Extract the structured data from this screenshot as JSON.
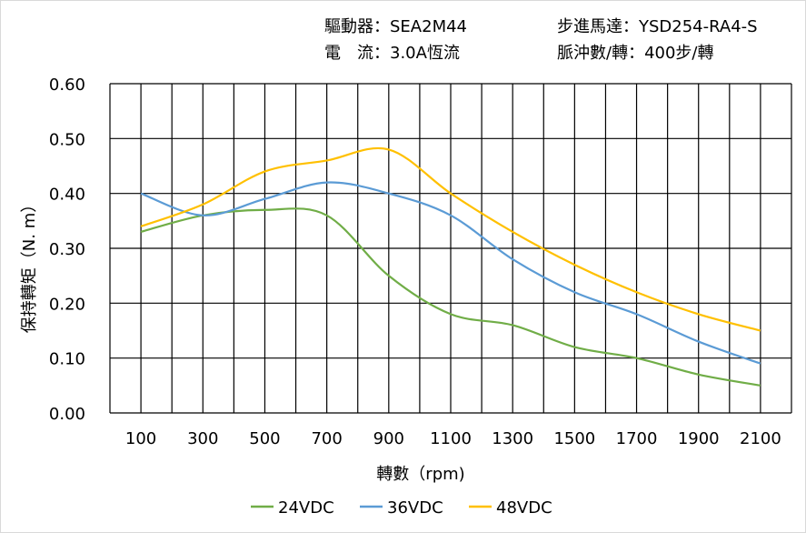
{
  "header": {
    "driver_label": "驅動器：",
    "driver_value": "SEA2M44",
    "motor_label": "步進馬達：",
    "motor_value": "YSD254-RA4-S",
    "current_label": "電　流：",
    "current_value": "3.0A恆流",
    "pulse_label": "脈沖數/轉：",
    "pulse_value": "400步/轉"
  },
  "chart_data": {
    "type": "line",
    "title": "",
    "xlabel": "轉數（rpm)",
    "ylabel": "保持轉矩（N. m）",
    "x": [
      100,
      300,
      500,
      700,
      900,
      1100,
      1300,
      1500,
      1700,
      1900,
      2100
    ],
    "xlim": [
      0,
      2200
    ],
    "ylim": [
      0,
      0.6
    ],
    "x_ticks": [
      "100",
      "300",
      "500",
      "700",
      "900",
      "1100",
      "1300",
      "1500",
      "1700",
      "1900",
      "2100"
    ],
    "y_ticks": [
      "0.00",
      "0.10",
      "0.20",
      "0.30",
      "0.40",
      "0.50",
      "0.60"
    ],
    "grid": true,
    "legend_position": "bottom",
    "series": [
      {
        "name": "24VDC",
        "color": "#70ad47",
        "values": [
          0.33,
          0.36,
          0.37,
          0.36,
          0.25,
          0.18,
          0.16,
          0.12,
          0.1,
          0.07,
          0.05
        ]
      },
      {
        "name": "36VDC",
        "color": "#5b9bd5",
        "values": [
          0.4,
          0.36,
          0.39,
          0.42,
          0.4,
          0.36,
          0.28,
          0.22,
          0.18,
          0.13,
          0.09
        ]
      },
      {
        "name": "48VDC",
        "color": "#ffc000",
        "values": [
          0.34,
          0.38,
          0.44,
          0.46,
          0.48,
          0.4,
          0.33,
          0.27,
          0.22,
          0.18,
          0.15
        ]
      }
    ]
  }
}
